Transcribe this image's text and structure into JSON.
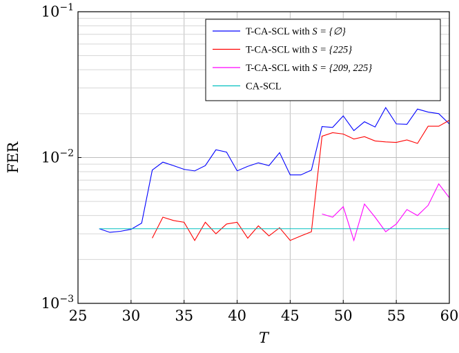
{
  "chart_data": {
    "type": "line",
    "xlabel": "T",
    "ylabel": "FER",
    "xlim": [
      25,
      60
    ],
    "ylim": [
      0.001,
      0.1
    ],
    "yscale": "log",
    "grid": true,
    "legend_position": "top-right",
    "x_ticks": [
      "25",
      "30",
      "35",
      "40",
      "45",
      "50",
      "55",
      "60"
    ],
    "y_ticks": [
      {
        "value": 0.001,
        "base": "10",
        "exp": "−3"
      },
      {
        "value": 0.01,
        "base": "10",
        "exp": "−2"
      },
      {
        "value": 0.1,
        "base": "10",
        "exp": "−1"
      }
    ],
    "series": [
      {
        "name": "T-CA-SCL with S = {∅}",
        "legend_prefix": "T-CA-SCL with ",
        "legend_math": "S = {∅}",
        "color": "#0000ff",
        "x": [
          27,
          28,
          29,
          30,
          31,
          32,
          33,
          34,
          35,
          36,
          37,
          38,
          39,
          40,
          41,
          42,
          43,
          44,
          45,
          46,
          47,
          48,
          49,
          50,
          51,
          52,
          53,
          54,
          55,
          56,
          57,
          58,
          59,
          60
        ],
        "y": [
          0.00325,
          0.00307,
          0.00312,
          0.00322,
          0.00355,
          0.0082,
          0.0093,
          0.0088,
          0.0083,
          0.0081,
          0.0088,
          0.0113,
          0.0109,
          0.0081,
          0.0087,
          0.0092,
          0.0088,
          0.0108,
          0.0076,
          0.0076,
          0.0082,
          0.0163,
          0.0161,
          0.0193,
          0.0153,
          0.0176,
          0.0162,
          0.022,
          0.017,
          0.0169,
          0.0215,
          0.0205,
          0.02,
          0.017
        ]
      },
      {
        "name": "T-CA-SCL with S = {225}",
        "legend_prefix": "T-CA-SCL with ",
        "legend_math": "S = {225}",
        "color": "#ff0000",
        "x": [
          32,
          33,
          34,
          35,
          36,
          37,
          38,
          39,
          40,
          41,
          42,
          43,
          44,
          45,
          46,
          47,
          48,
          49,
          50,
          51,
          52,
          53,
          54,
          55,
          56,
          57,
          58,
          59,
          60
        ],
        "y": [
          0.0028,
          0.0039,
          0.0037,
          0.0036,
          0.0027,
          0.0036,
          0.003,
          0.0035,
          0.0036,
          0.0028,
          0.0034,
          0.0029,
          0.0033,
          0.0027,
          0.0029,
          0.0031,
          0.014,
          0.0148,
          0.0145,
          0.0134,
          0.0139,
          0.013,
          0.0128,
          0.0127,
          0.0132,
          0.0125,
          0.0164,
          0.0164,
          0.018
        ]
      },
      {
        "name": "T-CA-SCL with S = {209, 225}",
        "legend_prefix": "T-CA-SCL with ",
        "legend_math": "S = {209, 225}",
        "color": "#ff00ff",
        "x": [
          48,
          49,
          50,
          51,
          52,
          53,
          54,
          55,
          56,
          57,
          58,
          59,
          60
        ],
        "y": [
          0.0041,
          0.0039,
          0.0046,
          0.0027,
          0.0048,
          0.0039,
          0.0031,
          0.0035,
          0.0044,
          0.004,
          0.0047,
          0.0066,
          0.0053
        ]
      },
      {
        "name": "CA-SCL",
        "legend_prefix": "CA-SCL",
        "legend_math": "",
        "color": "#00bfbf",
        "x": [
          27,
          60
        ],
        "y": [
          0.00325,
          0.00325
        ]
      }
    ]
  }
}
